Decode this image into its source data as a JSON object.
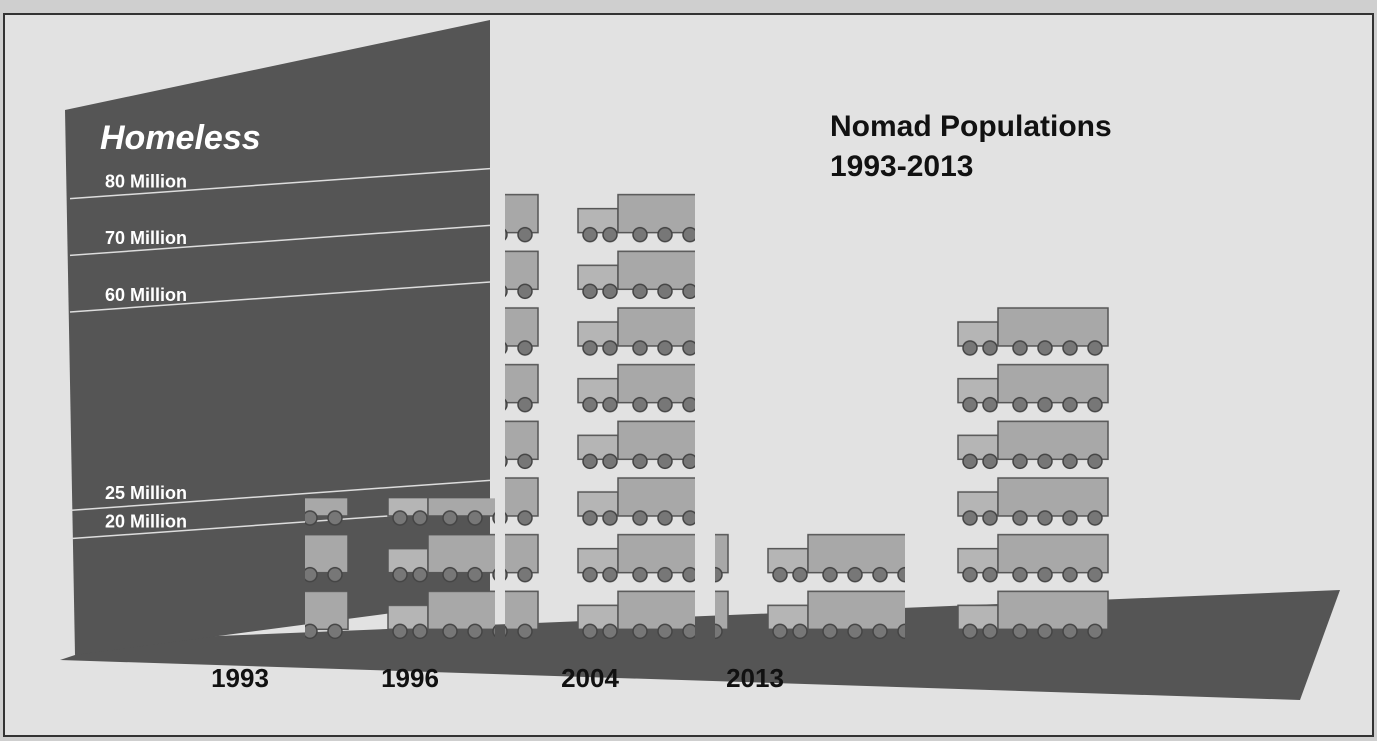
{
  "chart_data": {
    "type": "pictograph",
    "title": "Nomad Populations",
    "subtitle": "1993-2013",
    "axis_label": "Homeless",
    "categories": [
      "1993",
      "1996",
      "2004",
      "2013"
    ],
    "values": [
      25,
      80,
      20,
      60
    ],
    "color": "#9a9a9a",
    "ylim": [
      0,
      90
    ],
    "yticks": [
      {
        "value": 20,
        "label": "20 Million"
      },
      {
        "value": 25,
        "label": "25 Million"
      },
      {
        "value": 60,
        "label": "60 Million"
      },
      {
        "value": 70,
        "label": "70 Million"
      },
      {
        "value": 80,
        "label": "80 Million"
      }
    ],
    "grid": true
  }
}
